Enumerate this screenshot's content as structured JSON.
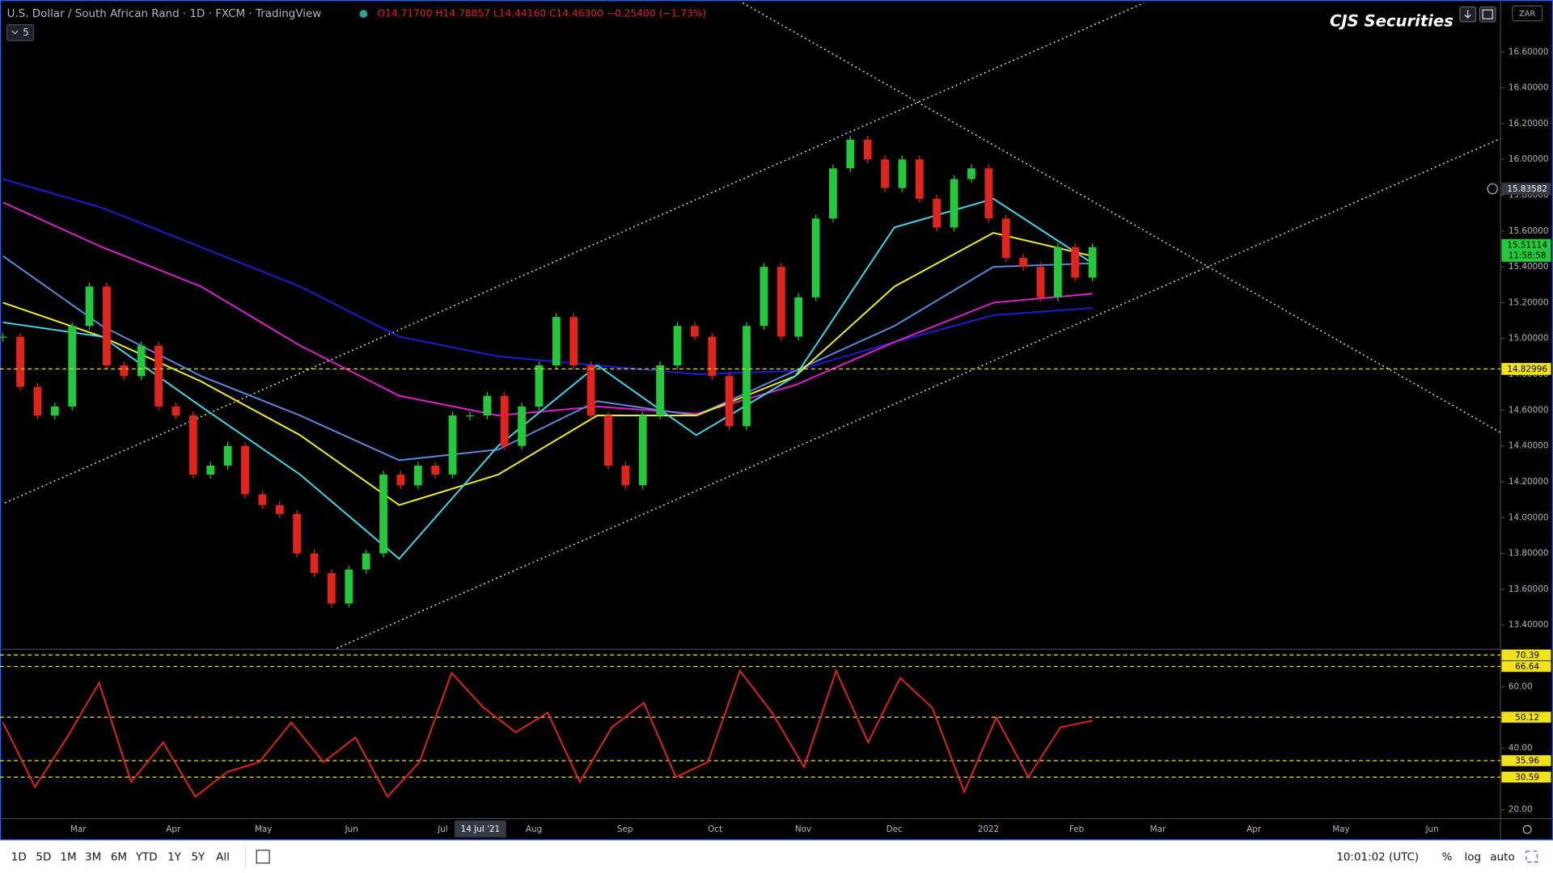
{
  "header": {
    "symbol": "U.S. Dollar / South African Rand · 1D · FXCM · TradingView",
    "ohlc": "O14.71700 H14.78857 L14.44160 C14.46300 −0.25400 (−1.73%)",
    "interval_badge": "5",
    "brand": "CJS Securities",
    "currency": "ZAR"
  },
  "chart_data": [
    {
      "type": "candlestick",
      "up_color": "#22c93a",
      "down_color": "#e3241d",
      "values": [
        15.01,
        14.73,
        14.57,
        14.62,
        15.07,
        15.29,
        14.85,
        14.79,
        14.96,
        14.62,
        14.57,
        14.24,
        14.29,
        14.4,
        14.13,
        14.07,
        14.02,
        13.8,
        13.69,
        13.52,
        13.71,
        13.8,
        14.24,
        14.18,
        14.29,
        14.24,
        14.57,
        14.57,
        14.68,
        14.4,
        14.62,
        14.85,
        15.12,
        14.85,
        14.57,
        14.29,
        14.18,
        14.57,
        14.85,
        15.07,
        15.01,
        14.79,
        14.51,
        15.07,
        15.4,
        15.01,
        15.23,
        15.67,
        15.95,
        16.11,
        16.0,
        15.84,
        16.0,
        15.78,
        15.62,
        15.89,
        15.95,
        15.67,
        15.45,
        15.4,
        15.23,
        15.51,
        15.34,
        15.51
      ],
      "series": [
        {
          "color": "#1d1dd6",
          "values": [
            15.89,
            15.73,
            15.51,
            15.29,
            15.01,
            14.9,
            14.85,
            14.8,
            14.82,
            14.98,
            15.13,
            15.17
          ]
        },
        {
          "color": "#e01fd0",
          "values": [
            15.76,
            15.51,
            15.29,
            14.96,
            14.68,
            14.57,
            14.62,
            14.58,
            14.74,
            14.98,
            15.2,
            15.25
          ]
        },
        {
          "color": "#5b8be0",
          "values": [
            15.46,
            15.07,
            14.79,
            14.57,
            14.32,
            14.38,
            14.65,
            14.57,
            14.82,
            15.07,
            15.4,
            15.42
          ]
        },
        {
          "color": "#f2f21a",
          "values": [
            15.2,
            15.01,
            14.76,
            14.46,
            14.07,
            14.24,
            14.57,
            14.57,
            14.79,
            15.29,
            15.59,
            15.46
          ]
        },
        {
          "color": "#3fd9f0",
          "values": [
            15.09,
            15.01,
            14.62,
            14.24,
            13.77,
            14.4,
            14.85,
            14.46,
            14.79,
            15.62,
            15.78,
            15.42
          ]
        }
      ],
      "ylim": [
        13.27,
        16.89
      ],
      "yticks": [
        {
          "value": 13.4,
          "label": "13.40000"
        },
        {
          "value": 13.6,
          "label": "13.60000"
        },
        {
          "value": 13.8,
          "label": "13.80000"
        },
        {
          "value": 14.0,
          "label": "14.00000"
        },
        {
          "value": 14.2,
          "label": "14.20000"
        },
        {
          "value": 14.4,
          "label": "14.40000"
        },
        {
          "value": 14.6,
          "label": "14.60000"
        },
        {
          "value": 14.8,
          "label": "14.80000"
        },
        {
          "value": 15.0,
          "label": "15.00000"
        },
        {
          "value": 15.2,
          "label": "15.20000"
        },
        {
          "value": 15.4,
          "label": "15.40000"
        },
        {
          "value": 15.6,
          "label": "15.60000"
        },
        {
          "value": 15.8,
          "label": "15.80000"
        },
        {
          "value": 16.0,
          "label": "16.00000"
        },
        {
          "value": 16.2,
          "label": "16.20000"
        },
        {
          "value": 16.4,
          "label": "16.40000"
        },
        {
          "value": 16.6,
          "label": "16.60000"
        }
      ],
      "horizontal_level": 14.82996,
      "crosshair_price": 15.83582,
      "last_price": 15.51114,
      "countdown": "11:58:58"
    },
    {
      "type": "line",
      "color": "#e3241d",
      "values": [
        48.4,
        27.4,
        43.5,
        61.3,
        29.0,
        41.9,
        24.2,
        32.3,
        35.5,
        48.4,
        35.5,
        43.5,
        24.2,
        35.5,
        64.5,
        53.2,
        45.2,
        51.6,
        29.0,
        46.8,
        54.8,
        30.6,
        35.5,
        65.2,
        51.6,
        33.9,
        65.2,
        41.9,
        62.9,
        53.2,
        25.8,
        50.0,
        30.6,
        46.8,
        49.0
      ],
      "ylim": [
        17.1,
        71.9
      ],
      "yticks": [
        {
          "value": 20,
          "label": "20.00"
        },
        {
          "value": 40,
          "label": "40.00"
        },
        {
          "value": 60,
          "label": "60.00"
        }
      ],
      "levels": [
        70.39,
        66.64,
        50.12,
        35.96,
        30.59
      ]
    }
  ],
  "time_axis": {
    "labels": [
      "Mar",
      "Apr",
      "May",
      "Jun",
      "Jul",
      "Aug",
      "Sep",
      "Oct",
      "Nov",
      "Dec",
      "2022",
      "Feb",
      "Mar",
      "Apr",
      "May",
      "Jun"
    ],
    "crosshair": "14 Jul '21"
  },
  "toolbar": {
    "ranges": [
      "1D",
      "5D",
      "1M",
      "3M",
      "6M",
      "YTD",
      "1Y",
      "5Y",
      "All"
    ],
    "clock": "10:01:02 (UTC)",
    "options": [
      "%",
      "log",
      "auto"
    ]
  }
}
